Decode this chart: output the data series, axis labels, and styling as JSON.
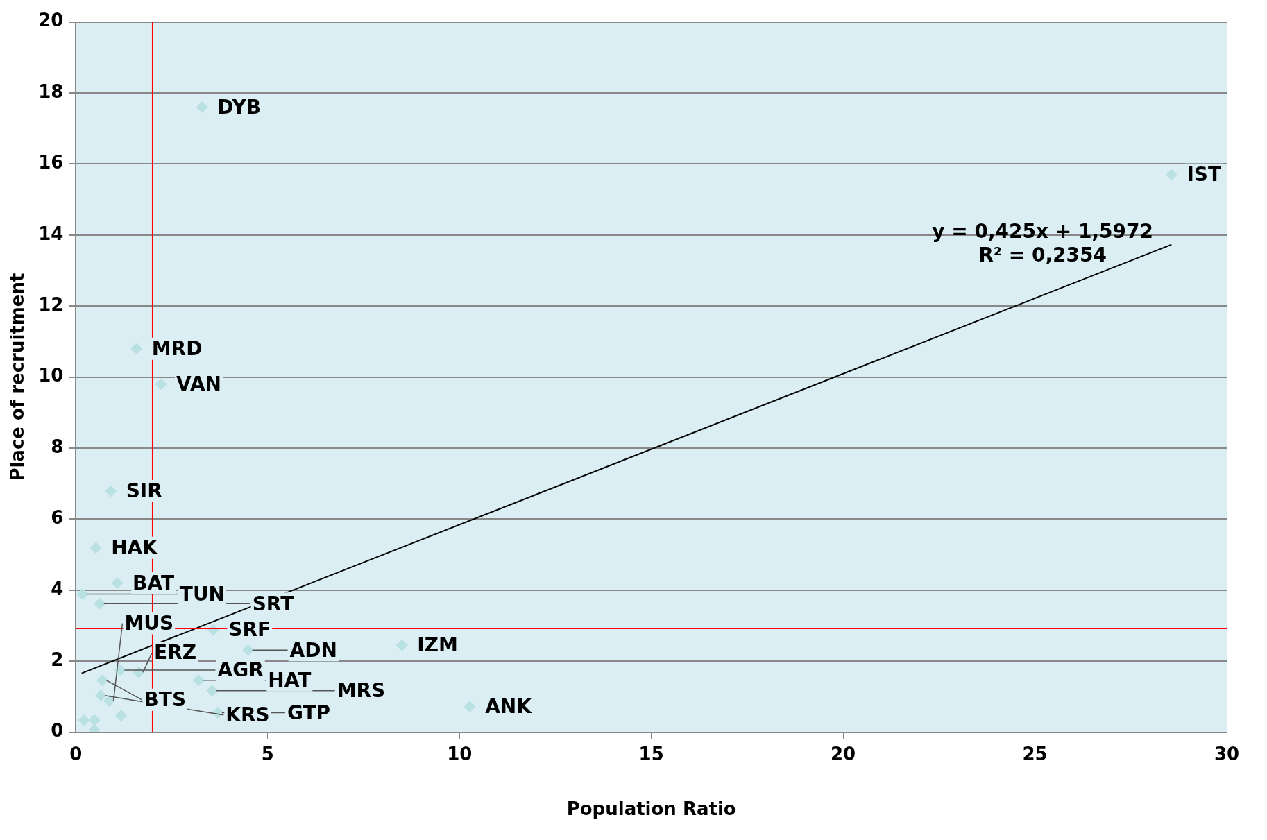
{
  "chart_data": {
    "type": "scatter",
    "xlabel": "Population Ratio",
    "ylabel": "Place of recruitment",
    "xlim": [
      0,
      30
    ],
    "xticks": [
      0,
      5,
      10,
      15,
      20,
      25,
      30
    ],
    "ylim": [
      0,
      20
    ],
    "yticks": [
      0,
      2,
      4,
      6,
      8,
      10,
      12,
      14,
      16,
      18,
      20
    ],
    "grid": "y",
    "legend": false,
    "marker": "diamond",
    "series": [
      {
        "color": "#b9e0e2",
        "x": [
          3.29,
          28.56,
          1.58,
          2.22,
          0.91,
          0.52,
          1.08,
          0.17,
          0.62,
          3.58,
          4.49,
          8.5,
          10.27,
          1.16,
          1.64,
          0.69,
          3.2,
          3.55,
          0.65,
          0.87,
          3.7,
          0.21,
          0.48,
          1.18,
          0.48
        ],
        "values": [
          17.6,
          15.7,
          10.8,
          9.8,
          6.79,
          5.19,
          4.2,
          3.89,
          3.62,
          2.88,
          2.31,
          2.45,
          0.72,
          1.75,
          1.69,
          1.46,
          1.46,
          1.17,
          1.03,
          0.88,
          0.55,
          0.34,
          0.34,
          0.47,
          0.07
        ]
      },
      {
        "type": "line",
        "color": "#000000",
        "marker": "none",
        "x": [
          0.15,
          28.56
        ],
        "values": [
          1.66,
          13.73
        ]
      }
    ],
    "ref_lines": [
      {
        "axis": "x",
        "value": 2.0,
        "color": "#ff0000"
      },
      {
        "axis": "y",
        "value": 2.92,
        "color": "#ff0000"
      }
    ],
    "annotations": [
      {
        "text": "DYB",
        "x": 3.29,
        "y": 17.6
      },
      {
        "text": "IST",
        "x": 28.56,
        "y": 15.7
      },
      {
        "text": "MRD",
        "x": 1.58,
        "y": 10.8
      },
      {
        "text": "VAN",
        "x": 2.22,
        "y": 9.8
      },
      {
        "text": "SIR",
        "x": 0.91,
        "y": 6.79
      },
      {
        "text": "HAK",
        "x": 0.52,
        "y": 5.19
      },
      {
        "text": "BAT",
        "x": 1.08,
        "y": 4.2
      },
      {
        "text": "TUN",
        "x": 0.17,
        "y": 3.89
      },
      {
        "text": "SRT",
        "x": 0.62,
        "y": 3.62
      },
      {
        "text": "SRF",
        "x": 3.58,
        "y": 2.88
      },
      {
        "text": "ADN",
        "x": 4.49,
        "y": 2.31
      },
      {
        "text": "IZM",
        "x": 8.5,
        "y": 2.45
      },
      {
        "text": "ANK",
        "x": 10.27,
        "y": 0.72
      },
      {
        "text": "AGR",
        "x": 1.16,
        "y": 1.75
      },
      {
        "text": "ERZ",
        "x": 1.64,
        "y": 1.69
      },
      {
        "text": "BTS",
        "x": 0.69,
        "y": 1.46
      },
      {
        "text": "HAT",
        "x": 3.2,
        "y": 1.46
      },
      {
        "text": "MRS",
        "x": 3.55,
        "y": 1.17
      },
      {
        "text": "KRS",
        "x": 0.65,
        "y": 1.03
      },
      {
        "text": "MUS",
        "x": 0.87,
        "y": 0.88
      },
      {
        "text": "GTP",
        "x": 3.7,
        "y": 0.55
      },
      "y = 0,425x + 1,5972",
      "R² = 0,2354"
    ]
  }
}
